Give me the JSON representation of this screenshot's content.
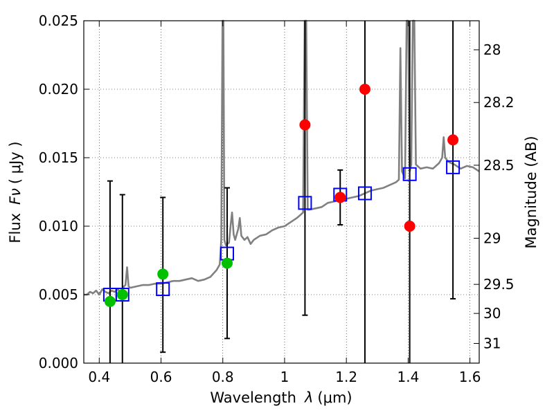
{
  "chart_data": {
    "type": "scatter",
    "xlabel_text": "Wavelength",
    "xlabel_symbol": "λ",
    "xlabel_unit": "(μm)",
    "ylabel_text": "Flux",
    "ylabel_symbol": "Fν",
    "ylabel_unit": "( μJy )",
    "y2label": "Magnitude (AB)",
    "xlim": [
      0.35,
      1.63
    ],
    "ylim": [
      0.0,
      0.025
    ],
    "grid": true,
    "x_ticks": [
      {
        "value": 0.4,
        "label": "0.4"
      },
      {
        "value": 0.6,
        "label": "0.6"
      },
      {
        "value": 0.8,
        "label": "0.8"
      },
      {
        "value": 1.0,
        "label": "1"
      },
      {
        "value": 1.2,
        "label": "1.2"
      },
      {
        "value": 1.4,
        "label": "1.4"
      },
      {
        "value": 1.6,
        "label": "1.6"
      }
    ],
    "y_ticks": [
      {
        "value": 0.0,
        "label": "0.000"
      },
      {
        "value": 0.005,
        "label": "0.005"
      },
      {
        "value": 0.01,
        "label": "0.010"
      },
      {
        "value": 0.015,
        "label": "0.015"
      },
      {
        "value": 0.02,
        "label": "0.020"
      },
      {
        "value": 0.025,
        "label": "0.025"
      }
    ],
    "y2_ticks": [
      {
        "flux": 0.02288,
        "label": "28"
      },
      {
        "flux": 0.01903,
        "label": "28.2"
      },
      {
        "flux": 0.01445,
        "label": "28.5"
      },
      {
        "flux": 0.00912,
        "label": "29"
      },
      {
        "flux": 0.00575,
        "label": "29.5"
      },
      {
        "flux": 0.00363,
        "label": "30"
      },
      {
        "flux": 0.00144,
        "label": "31"
      }
    ],
    "series": [
      {
        "name": "model_spectrum",
        "kind": "line",
        "color": "#808080",
        "points": [
          [
            0.35,
            0.005
          ],
          [
            0.36,
            0.005
          ],
          [
            0.37,
            0.0052
          ],
          [
            0.38,
            0.0051
          ],
          [
            0.39,
            0.0053
          ],
          [
            0.4,
            0.005
          ],
          [
            0.41,
            0.0054
          ],
          [
            0.42,
            0.0052
          ],
          [
            0.43,
            0.0051
          ],
          [
            0.44,
            0.0053
          ],
          [
            0.45,
            0.0052
          ],
          [
            0.46,
            0.0054
          ],
          [
            0.47,
            0.0051
          ],
          [
            0.48,
            0.0056
          ],
          [
            0.485,
            0.0057
          ],
          [
            0.49,
            0.007
          ],
          [
            0.495,
            0.0056
          ],
          [
            0.5,
            0.0055
          ],
          [
            0.52,
            0.0056
          ],
          [
            0.54,
            0.0057
          ],
          [
            0.56,
            0.0057
          ],
          [
            0.58,
            0.0058
          ],
          [
            0.6,
            0.0058
          ],
          [
            0.62,
            0.0059
          ],
          [
            0.64,
            0.006
          ],
          [
            0.66,
            0.006
          ],
          [
            0.68,
            0.0061
          ],
          [
            0.7,
            0.0062
          ],
          [
            0.72,
            0.006
          ],
          [
            0.74,
            0.0061
          ],
          [
            0.76,
            0.0063
          ],
          [
            0.78,
            0.0068
          ],
          [
            0.79,
            0.0072
          ],
          [
            0.795,
            0.009
          ],
          [
            0.799,
            0.025
          ],
          [
            0.802,
            0.025
          ],
          [
            0.805,
            0.009
          ],
          [
            0.81,
            0.0086
          ],
          [
            0.82,
            0.0088
          ],
          [
            0.825,
            0.01
          ],
          [
            0.83,
            0.011
          ],
          [
            0.835,
            0.0094
          ],
          [
            0.84,
            0.009
          ],
          [
            0.85,
            0.0098
          ],
          [
            0.855,
            0.0106
          ],
          [
            0.86,
            0.0093
          ],
          [
            0.87,
            0.009
          ],
          [
            0.88,
            0.0092
          ],
          [
            0.89,
            0.0087
          ],
          [
            0.9,
            0.009
          ],
          [
            0.92,
            0.0093
          ],
          [
            0.94,
            0.0094
          ],
          [
            0.96,
            0.0097
          ],
          [
            0.98,
            0.0099
          ],
          [
            1.0,
            0.01
          ],
          [
            1.02,
            0.0103
          ],
          [
            1.04,
            0.0106
          ],
          [
            1.05,
            0.0108
          ],
          [
            1.06,
            0.011
          ],
          [
            1.065,
            0.025
          ],
          [
            1.07,
            0.025
          ],
          [
            1.075,
            0.0112
          ],
          [
            1.08,
            0.0112
          ],
          [
            1.1,
            0.0113
          ],
          [
            1.12,
            0.0114
          ],
          [
            1.14,
            0.0117
          ],
          [
            1.16,
            0.0118
          ],
          [
            1.18,
            0.0119
          ],
          [
            1.2,
            0.012
          ],
          [
            1.22,
            0.0121
          ],
          [
            1.24,
            0.0122
          ],
          [
            1.26,
            0.0124
          ],
          [
            1.28,
            0.0126
          ],
          [
            1.3,
            0.0127
          ],
          [
            1.32,
            0.0128
          ],
          [
            1.34,
            0.013
          ],
          [
            1.36,
            0.0132
          ],
          [
            1.37,
            0.0134
          ],
          [
            1.375,
            0.023
          ],
          [
            1.38,
            0.014
          ],
          [
            1.39,
            0.0135
          ],
          [
            1.395,
            0.025
          ],
          [
            1.4,
            0.025
          ],
          [
            1.405,
            0.014
          ],
          [
            1.41,
            0.0145
          ],
          [
            1.415,
            0.025
          ],
          [
            1.42,
            0.025
          ],
          [
            1.425,
            0.0145
          ],
          [
            1.44,
            0.0142
          ],
          [
            1.46,
            0.0143
          ],
          [
            1.48,
            0.0142
          ],
          [
            1.5,
            0.0146
          ],
          [
            1.51,
            0.015
          ],
          [
            1.515,
            0.0165
          ],
          [
            1.52,
            0.015
          ],
          [
            1.53,
            0.0147
          ],
          [
            1.55,
            0.0145
          ],
          [
            1.57,
            0.0142
          ],
          [
            1.59,
            0.0144
          ],
          [
            1.61,
            0.0143
          ],
          [
            1.63,
            0.014
          ]
        ]
      },
      {
        "name": "model_photometry",
        "kind": "open-square",
        "color": "#0000ff",
        "points": [
          {
            "x": 0.435,
            "y": 0.005
          },
          {
            "x": 0.475,
            "y": 0.005
          },
          {
            "x": 0.606,
            "y": 0.0054
          },
          {
            "x": 0.814,
            "y": 0.008
          },
          {
            "x": 1.066,
            "y": 0.0117
          },
          {
            "x": 1.18,
            "y": 0.0123
          },
          {
            "x": 1.26,
            "y": 0.0124
          },
          {
            "x": 1.405,
            "y": 0.0138
          },
          {
            "x": 1.545,
            "y": 0.0143
          }
        ]
      },
      {
        "name": "hst_acs_detections",
        "kind": "filled-circle",
        "color": "#00c000",
        "points": [
          {
            "x": 0.435,
            "y": 0.0045,
            "err_low": 0.0,
            "err_high": 0.0133
          },
          {
            "x": 0.475,
            "y": 0.005,
            "err_low": 0.0,
            "err_high": 0.0123
          },
          {
            "x": 0.606,
            "y": 0.0065,
            "err_low": 0.0008,
            "err_high": 0.0121
          },
          {
            "x": 0.814,
            "y": 0.0073,
            "err_low": 0.0018,
            "err_high": 0.0128
          }
        ]
      },
      {
        "name": "hst_wfc3_ir_detections",
        "kind": "filled-circle",
        "color": "#ff0000",
        "points": [
          {
            "x": 1.066,
            "y": 0.0174,
            "err_low": 0.0035,
            "err_high": 0.025
          },
          {
            "x": 1.18,
            "y": 0.0121,
            "err_low": 0.0101,
            "err_high": 0.0141
          },
          {
            "x": 1.26,
            "y": 0.02,
            "err_low": 0.0,
            "err_high": 0.025
          },
          {
            "x": 1.405,
            "y": 0.01,
            "err_low": 0.0,
            "err_high": 0.025
          },
          {
            "x": 1.545,
            "y": 0.0163,
            "err_low": 0.0047,
            "err_high": 0.025
          }
        ]
      }
    ]
  }
}
